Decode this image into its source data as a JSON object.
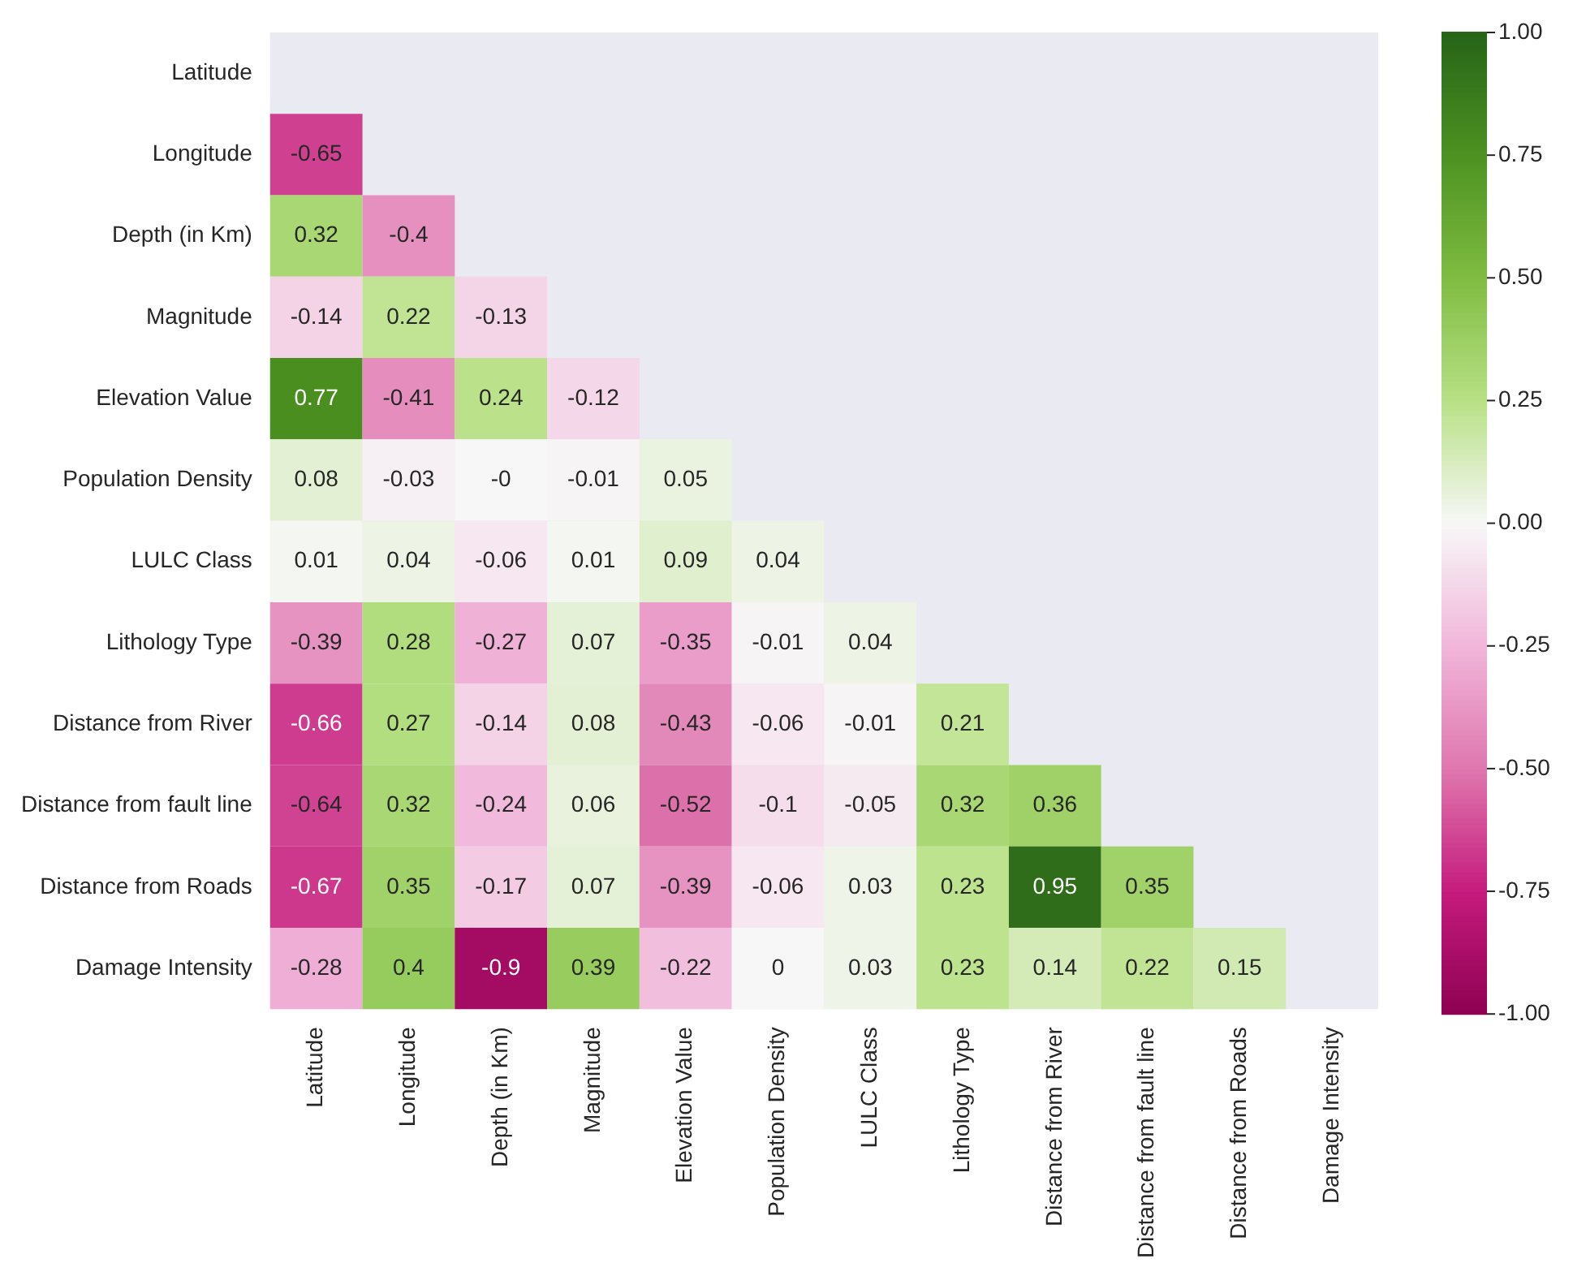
{
  "chart_data": {
    "type": "heatmap",
    "categories": [
      "Latitude",
      "Longitude",
      "Depth (in Km)",
      "Magnitude",
      "Elevation Value",
      "Population Density",
      "LULC Class",
      "Lithology Type",
      "Distance from River",
      "Distance from fault line",
      "Distance from Roads",
      "Damage Intensity"
    ],
    "y_categories": [
      "Latitude",
      "Longitude",
      "Depth (in Km)",
      "Magnitude",
      "Elevation Value",
      "Population Density",
      "LULC Class",
      "Lithology Type",
      "Distance from River",
      "Distance from fault line",
      "Distance from Roads",
      "Damage Intensity"
    ],
    "cells": [
      [
        null,
        null,
        null,
        null,
        null,
        null,
        null,
        null,
        null,
        null,
        null,
        null
      ],
      [
        -0.65,
        null,
        null,
        null,
        null,
        null,
        null,
        null,
        null,
        null,
        null,
        null
      ],
      [
        0.32,
        -0.4,
        null,
        null,
        null,
        null,
        null,
        null,
        null,
        null,
        null,
        null
      ],
      [
        -0.14,
        0.22,
        -0.13,
        null,
        null,
        null,
        null,
        null,
        null,
        null,
        null,
        null
      ],
      [
        0.77,
        -0.41,
        0.24,
        -0.12,
        null,
        null,
        null,
        null,
        null,
        null,
        null,
        null
      ],
      [
        0.08,
        -0.03,
        0,
        -0.01,
        0.05,
        null,
        null,
        null,
        null,
        null,
        null,
        null
      ],
      [
        0.01,
        0.04,
        -0.06,
        0.01,
        0.09,
        0.04,
        null,
        null,
        null,
        null,
        null,
        null
      ],
      [
        -0.39,
        0.28,
        -0.27,
        0.07,
        -0.35,
        -0.01,
        0.04,
        null,
        null,
        null,
        null,
        null
      ],
      [
        -0.66,
        0.27,
        -0.14,
        0.08,
        -0.43,
        -0.06,
        -0.01,
        0.21,
        null,
        null,
        null,
        null
      ],
      [
        -0.64,
        0.32,
        -0.24,
        0.06,
        -0.52,
        -0.1,
        -0.05,
        0.32,
        0.36,
        null,
        null,
        null
      ],
      [
        -0.67,
        0.35,
        -0.17,
        0.07,
        -0.39,
        -0.06,
        0.03,
        0.23,
        0.95,
        0.35,
        null,
        null
      ],
      [
        -0.28,
        0.4,
        -0.9,
        0.39,
        -0.22,
        0,
        0.03,
        0.23,
        0.14,
        0.22,
        0.15,
        null
      ]
    ],
    "cell_labels": [
      [
        null,
        null,
        null,
        null,
        null,
        null,
        null,
        null,
        null,
        null,
        null,
        null
      ],
      [
        "-0.65",
        null,
        null,
        null,
        null,
        null,
        null,
        null,
        null,
        null,
        null,
        null
      ],
      [
        "0.32",
        "-0.4",
        null,
        null,
        null,
        null,
        null,
        null,
        null,
        null,
        null,
        null
      ],
      [
        "-0.14",
        "0.22",
        "-0.13",
        null,
        null,
        null,
        null,
        null,
        null,
        null,
        null,
        null
      ],
      [
        "0.77",
        "-0.41",
        "0.24",
        "-0.12",
        null,
        null,
        null,
        null,
        null,
        null,
        null,
        null
      ],
      [
        "0.08",
        "-0.03",
        "-0",
        "-0.01",
        "0.05",
        null,
        null,
        null,
        null,
        null,
        null,
        null
      ],
      [
        "0.01",
        "0.04",
        "-0.06",
        "0.01",
        "0.09",
        "0.04",
        null,
        null,
        null,
        null,
        null,
        null
      ],
      [
        "-0.39",
        "0.28",
        "-0.27",
        "0.07",
        "-0.35",
        "-0.01",
        "0.04",
        null,
        null,
        null,
        null,
        null
      ],
      [
        "-0.66",
        "0.27",
        "-0.14",
        "0.08",
        "-0.43",
        "-0.06",
        "-0.01",
        "0.21",
        null,
        null,
        null,
        null
      ],
      [
        "-0.64",
        "0.32",
        "-0.24",
        "0.06",
        "-0.52",
        "-0.1",
        "-0.05",
        "0.32",
        "0.36",
        null,
        null,
        null
      ],
      [
        "-0.67",
        "0.35",
        "-0.17",
        "0.07",
        "-0.39",
        "-0.06",
        "0.03",
        "0.23",
        "0.95",
        "0.35",
        null,
        null
      ],
      [
        "-0.28",
        "0.4",
        "-0.9",
        "0.39",
        "-0.22",
        "0",
        "0.03",
        "0.23",
        "0.14",
        "0.22",
        "0.15",
        null
      ]
    ],
    "clim": [
      -1,
      1
    ],
    "cticks": [
      {
        "value": -1,
        "label": "-1.00"
      },
      {
        "value": -0.75,
        "label": "-0.75"
      },
      {
        "value": -0.5,
        "label": "-0.50"
      },
      {
        "value": -0.25,
        "label": "-0.25"
      },
      {
        "value": 0,
        "label": "0.00"
      },
      {
        "value": 0.25,
        "label": "0.25"
      },
      {
        "value": 0.5,
        "label": "0.50"
      },
      {
        "value": 0.75,
        "label": "0.75"
      },
      {
        "value": 1,
        "label": "1.00"
      }
    ]
  }
}
